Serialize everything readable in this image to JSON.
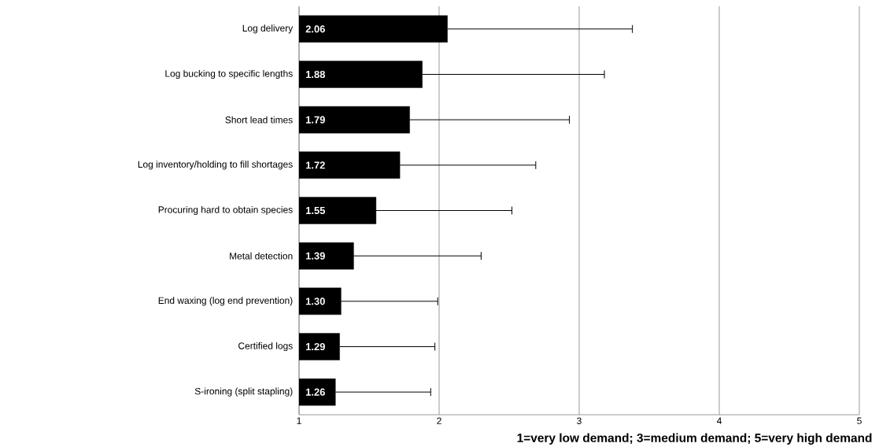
{
  "chart_data": {
    "type": "bar",
    "orientation": "horizontal",
    "categories": [
      "Log delivery",
      "Log bucking to specific lengths",
      "Short lead times",
      "Log inventory/holding to fill shortages",
      "Procuring hard to obtain species",
      "Metal detection",
      "End waxing (log end prevention)",
      "Certified logs",
      "S-ironing (split stapling)"
    ],
    "values": [
      2.06,
      1.88,
      1.79,
      1.72,
      1.55,
      1.39,
      1.3,
      1.29,
      1.26
    ],
    "value_labels": [
      "2.06",
      "1.88",
      "1.79",
      "1.72",
      "1.55",
      "1.39",
      "1.30",
      "1.29",
      "1.26"
    ],
    "errors": [
      [
        2.06,
        3.38
      ],
      [
        1.88,
        3.18
      ],
      [
        1.79,
        2.93
      ],
      [
        1.72,
        2.69
      ],
      [
        1.55,
        2.52
      ],
      [
        1.39,
        2.3
      ],
      [
        1.3,
        1.99
      ],
      [
        1.29,
        1.97
      ],
      [
        1.26,
        1.94
      ]
    ],
    "color": "#000000",
    "xlabel": "1=very low demand; 3=medium demand; 5=very high demand",
    "xlim": [
      1,
      5
    ],
    "xticks": [
      1,
      2,
      3,
      4,
      5
    ],
    "grid": "x"
  }
}
